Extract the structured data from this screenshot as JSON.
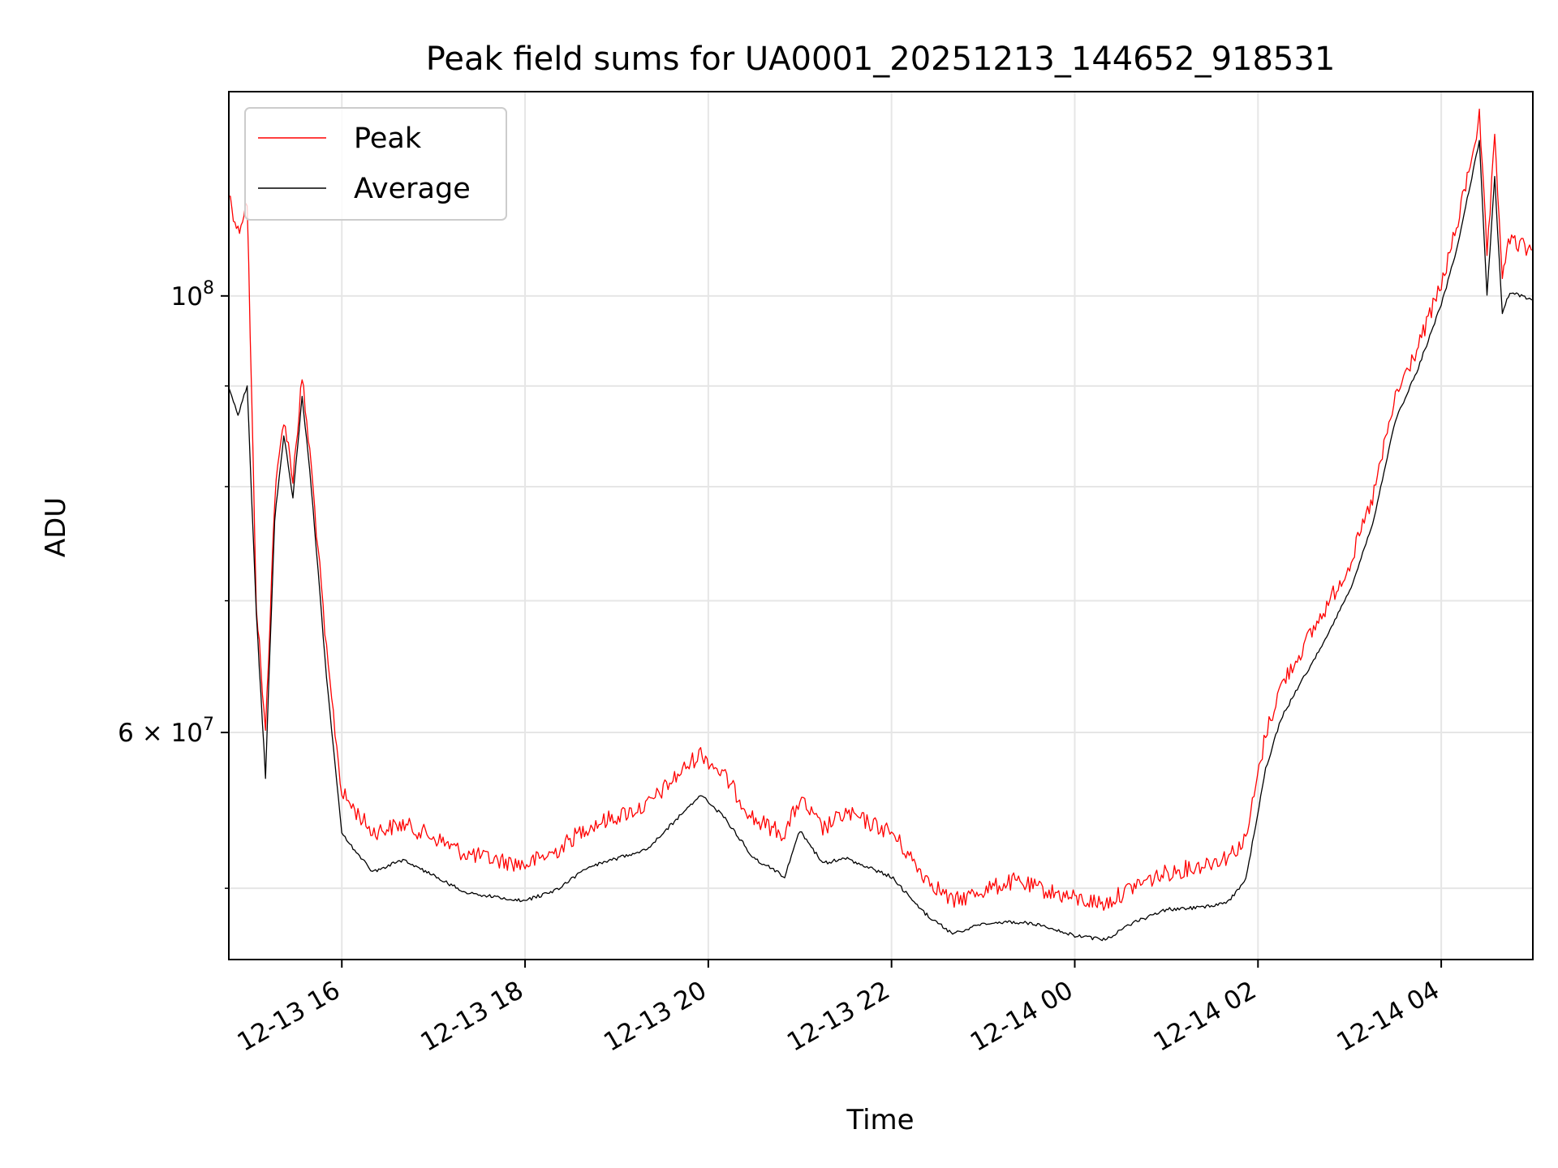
{
  "chart_data": {
    "type": "line",
    "title": "Peak field sums for UA0001_20251213_144652_918531",
    "xlabel": "Time",
    "ylabel": "ADU",
    "y_scale": "log",
    "ylim": [
      46000000,
      127000000
    ],
    "xlim": [
      "2025-12-13 14:46",
      "2025-12-14 05:00"
    ],
    "x_ticks": [
      {
        "value": "2025-12-13 16:00",
        "label": "12-13 16"
      },
      {
        "value": "2025-12-13 18:00",
        "label": "12-13 18"
      },
      {
        "value": "2025-12-13 20:00",
        "label": "12-13 20"
      },
      {
        "value": "2025-12-13 22:00",
        "label": "12-13 22"
      },
      {
        "value": "2025-12-14 00:00",
        "label": "12-14 00"
      },
      {
        "value": "2025-12-14 02:00",
        "label": "12-14 02"
      },
      {
        "value": "2025-12-14 04:00",
        "label": "12-14 04"
      }
    ],
    "y_major_ticks": [
      {
        "value": 100000000,
        "base": "10",
        "exp": "8"
      },
      {
        "value": 60000000,
        "base": "6 × 10",
        "exp": "7"
      }
    ],
    "y_minor_ticks": [
      50000000,
      70000000,
      80000000,
      90000000
    ],
    "grid": true,
    "legend_position": "top-left",
    "series": [
      {
        "name": "Peak",
        "color": "#ff0000",
        "points": [
          [
            "2025-12-13 14:46",
            113000000
          ],
          [
            "2025-12-13 14:52",
            108000000
          ],
          [
            "2025-12-13 14:58",
            112000000
          ],
          [
            "2025-12-13 15:04",
            70000000
          ],
          [
            "2025-12-13 15:10",
            60000000
          ],
          [
            "2025-12-13 15:16",
            79000000
          ],
          [
            "2025-12-13 15:22",
            87000000
          ],
          [
            "2025-12-13 15:28",
            81000000
          ],
          [
            "2025-12-13 15:34",
            91000000
          ],
          [
            "2025-12-13 15:40",
            82000000
          ],
          [
            "2025-12-13 15:50",
            66000000
          ],
          [
            "2025-12-13 16:00",
            56000000
          ],
          [
            "2025-12-13 16:20",
            53500000
          ],
          [
            "2025-12-13 16:40",
            54000000
          ],
          [
            "2025-12-13 17:00",
            53200000
          ],
          [
            "2025-12-13 17:20",
            52200000
          ],
          [
            "2025-12-13 17:40",
            51800000
          ],
          [
            "2025-12-13 18:00",
            51500000
          ],
          [
            "2025-12-13 18:20",
            52300000
          ],
          [
            "2025-12-13 18:40",
            53800000
          ],
          [
            "2025-12-13 19:00",
            54500000
          ],
          [
            "2025-12-13 19:20",
            55200000
          ],
          [
            "2025-12-13 19:40",
            57200000
          ],
          [
            "2025-12-13 19:55",
            58700000
          ],
          [
            "2025-12-13 20:10",
            57200000
          ],
          [
            "2025-12-13 20:30",
            54300000
          ],
          [
            "2025-12-13 20:50",
            53400000
          ],
          [
            "2025-12-13 21:00",
            55600000
          ],
          [
            "2025-12-13 21:15",
            53700000
          ],
          [
            "2025-12-13 21:30",
            54700000
          ],
          [
            "2025-12-13 22:00",
            53500000
          ],
          [
            "2025-12-13 22:20",
            51000000
          ],
          [
            "2025-12-13 22:40",
            49300000
          ],
          [
            "2025-12-13 23:00",
            50000000
          ],
          [
            "2025-12-13 23:20",
            50500000
          ],
          [
            "2025-12-13 23:40",
            50000000
          ],
          [
            "2025-12-14 00:00",
            49500000
          ],
          [
            "2025-12-14 00:20",
            49200000
          ],
          [
            "2025-12-14 00:40",
            50300000
          ],
          [
            "2025-12-14 01:00",
            51000000
          ],
          [
            "2025-12-14 01:20",
            51400000
          ],
          [
            "2025-12-14 01:40",
            52000000
          ],
          [
            "2025-12-14 01:52",
            53000000
          ],
          [
            "2025-12-14 02:05",
            60000000
          ],
          [
            "2025-12-14 02:15",
            63500000
          ],
          [
            "2025-12-14 02:30",
            66500000
          ],
          [
            "2025-12-14 02:45",
            69700000
          ],
          [
            "2025-12-14 03:00",
            73200000
          ],
          [
            "2025-12-14 03:15",
            79000000
          ],
          [
            "2025-12-14 03:30",
            89000000
          ],
          [
            "2025-12-14 03:45",
            94500000
          ],
          [
            "2025-12-14 04:00",
            101500000
          ],
          [
            "2025-12-14 04:10",
            108500000
          ],
          [
            "2025-12-14 04:18",
            116000000
          ],
          [
            "2025-12-14 04:25",
            123500000
          ],
          [
            "2025-12-14 04:30",
            105000000
          ],
          [
            "2025-12-14 04:35",
            120000000
          ],
          [
            "2025-12-14 04:40",
            103000000
          ],
          [
            "2025-12-14 04:45",
            107000000
          ],
          [
            "2025-12-14 05:00",
            105500000
          ]
        ]
      },
      {
        "name": "Average",
        "color": "#000000",
        "points": [
          [
            "2025-12-13 14:46",
            90000000
          ],
          [
            "2025-12-13 14:52",
            87000000
          ],
          [
            "2025-12-13 14:58",
            90000000
          ],
          [
            "2025-12-13 15:04",
            69000000
          ],
          [
            "2025-12-13 15:10",
            57000000
          ],
          [
            "2025-12-13 15:16",
            77000000
          ],
          [
            "2025-12-13 15:22",
            85000000
          ],
          [
            "2025-12-13 15:28",
            79000000
          ],
          [
            "2025-12-13 15:34",
            89000000
          ],
          [
            "2025-12-13 15:40",
            80000000
          ],
          [
            "2025-12-13 15:50",
            64000000
          ],
          [
            "2025-12-13 16:00",
            53300000
          ],
          [
            "2025-12-13 16:20",
            51000000
          ],
          [
            "2025-12-13 16:40",
            51700000
          ],
          [
            "2025-12-13 17:00",
            50800000
          ],
          [
            "2025-12-13 17:20",
            49800000
          ],
          [
            "2025-12-13 17:40",
            49500000
          ],
          [
            "2025-12-13 18:00",
            49300000
          ],
          [
            "2025-12-13 18:20",
            49900000
          ],
          [
            "2025-12-13 18:40",
            51200000
          ],
          [
            "2025-12-13 19:00",
            51800000
          ],
          [
            "2025-12-13 19:20",
            52400000
          ],
          [
            "2025-12-13 19:40",
            54300000
          ],
          [
            "2025-12-13 19:55",
            55800000
          ],
          [
            "2025-12-13 20:10",
            54400000
          ],
          [
            "2025-12-13 20:30",
            51800000
          ],
          [
            "2025-12-13 20:50",
            50700000
          ],
          [
            "2025-12-13 21:00",
            53500000
          ],
          [
            "2025-12-13 21:15",
            51500000
          ],
          [
            "2025-12-13 21:30",
            51800000
          ],
          [
            "2025-12-13 22:00",
            50700000
          ],
          [
            "2025-12-13 22:20",
            48700000
          ],
          [
            "2025-12-13 22:40",
            47400000
          ],
          [
            "2025-12-13 23:00",
            48000000
          ],
          [
            "2025-12-13 23:20",
            48100000
          ],
          [
            "2025-12-13 23:40",
            47900000
          ],
          [
            "2025-12-14 00:00",
            47300000
          ],
          [
            "2025-12-14 00:20",
            47100000
          ],
          [
            "2025-12-14 00:40",
            48100000
          ],
          [
            "2025-12-14 01:00",
            48800000
          ],
          [
            "2025-12-14 01:20",
            48900000
          ],
          [
            "2025-12-14 01:40",
            49200000
          ],
          [
            "2025-12-14 01:52",
            50500000
          ],
          [
            "2025-12-14 02:05",
            57500000
          ],
          [
            "2025-12-14 02:15",
            61000000
          ],
          [
            "2025-12-14 02:30",
            64000000
          ],
          [
            "2025-12-14 02:45",
            67200000
          ],
          [
            "2025-12-14 03:00",
            70800000
          ],
          [
            "2025-12-14 03:15",
            76500000
          ],
          [
            "2025-12-14 03:30",
            86500000
          ],
          [
            "2025-12-14 03:45",
            92000000
          ],
          [
            "2025-12-14 04:00",
            99000000
          ],
          [
            "2025-12-14 04:10",
            105500000
          ],
          [
            "2025-12-14 04:18",
            113000000
          ],
          [
            "2025-12-14 04:25",
            120000000
          ],
          [
            "2025-12-14 04:30",
            100000000
          ],
          [
            "2025-12-14 04:35",
            115000000
          ],
          [
            "2025-12-14 04:40",
            98000000
          ],
          [
            "2025-12-14 04:45",
            100500000
          ],
          [
            "2025-12-14 05:00",
            99500000
          ]
        ]
      }
    ]
  }
}
